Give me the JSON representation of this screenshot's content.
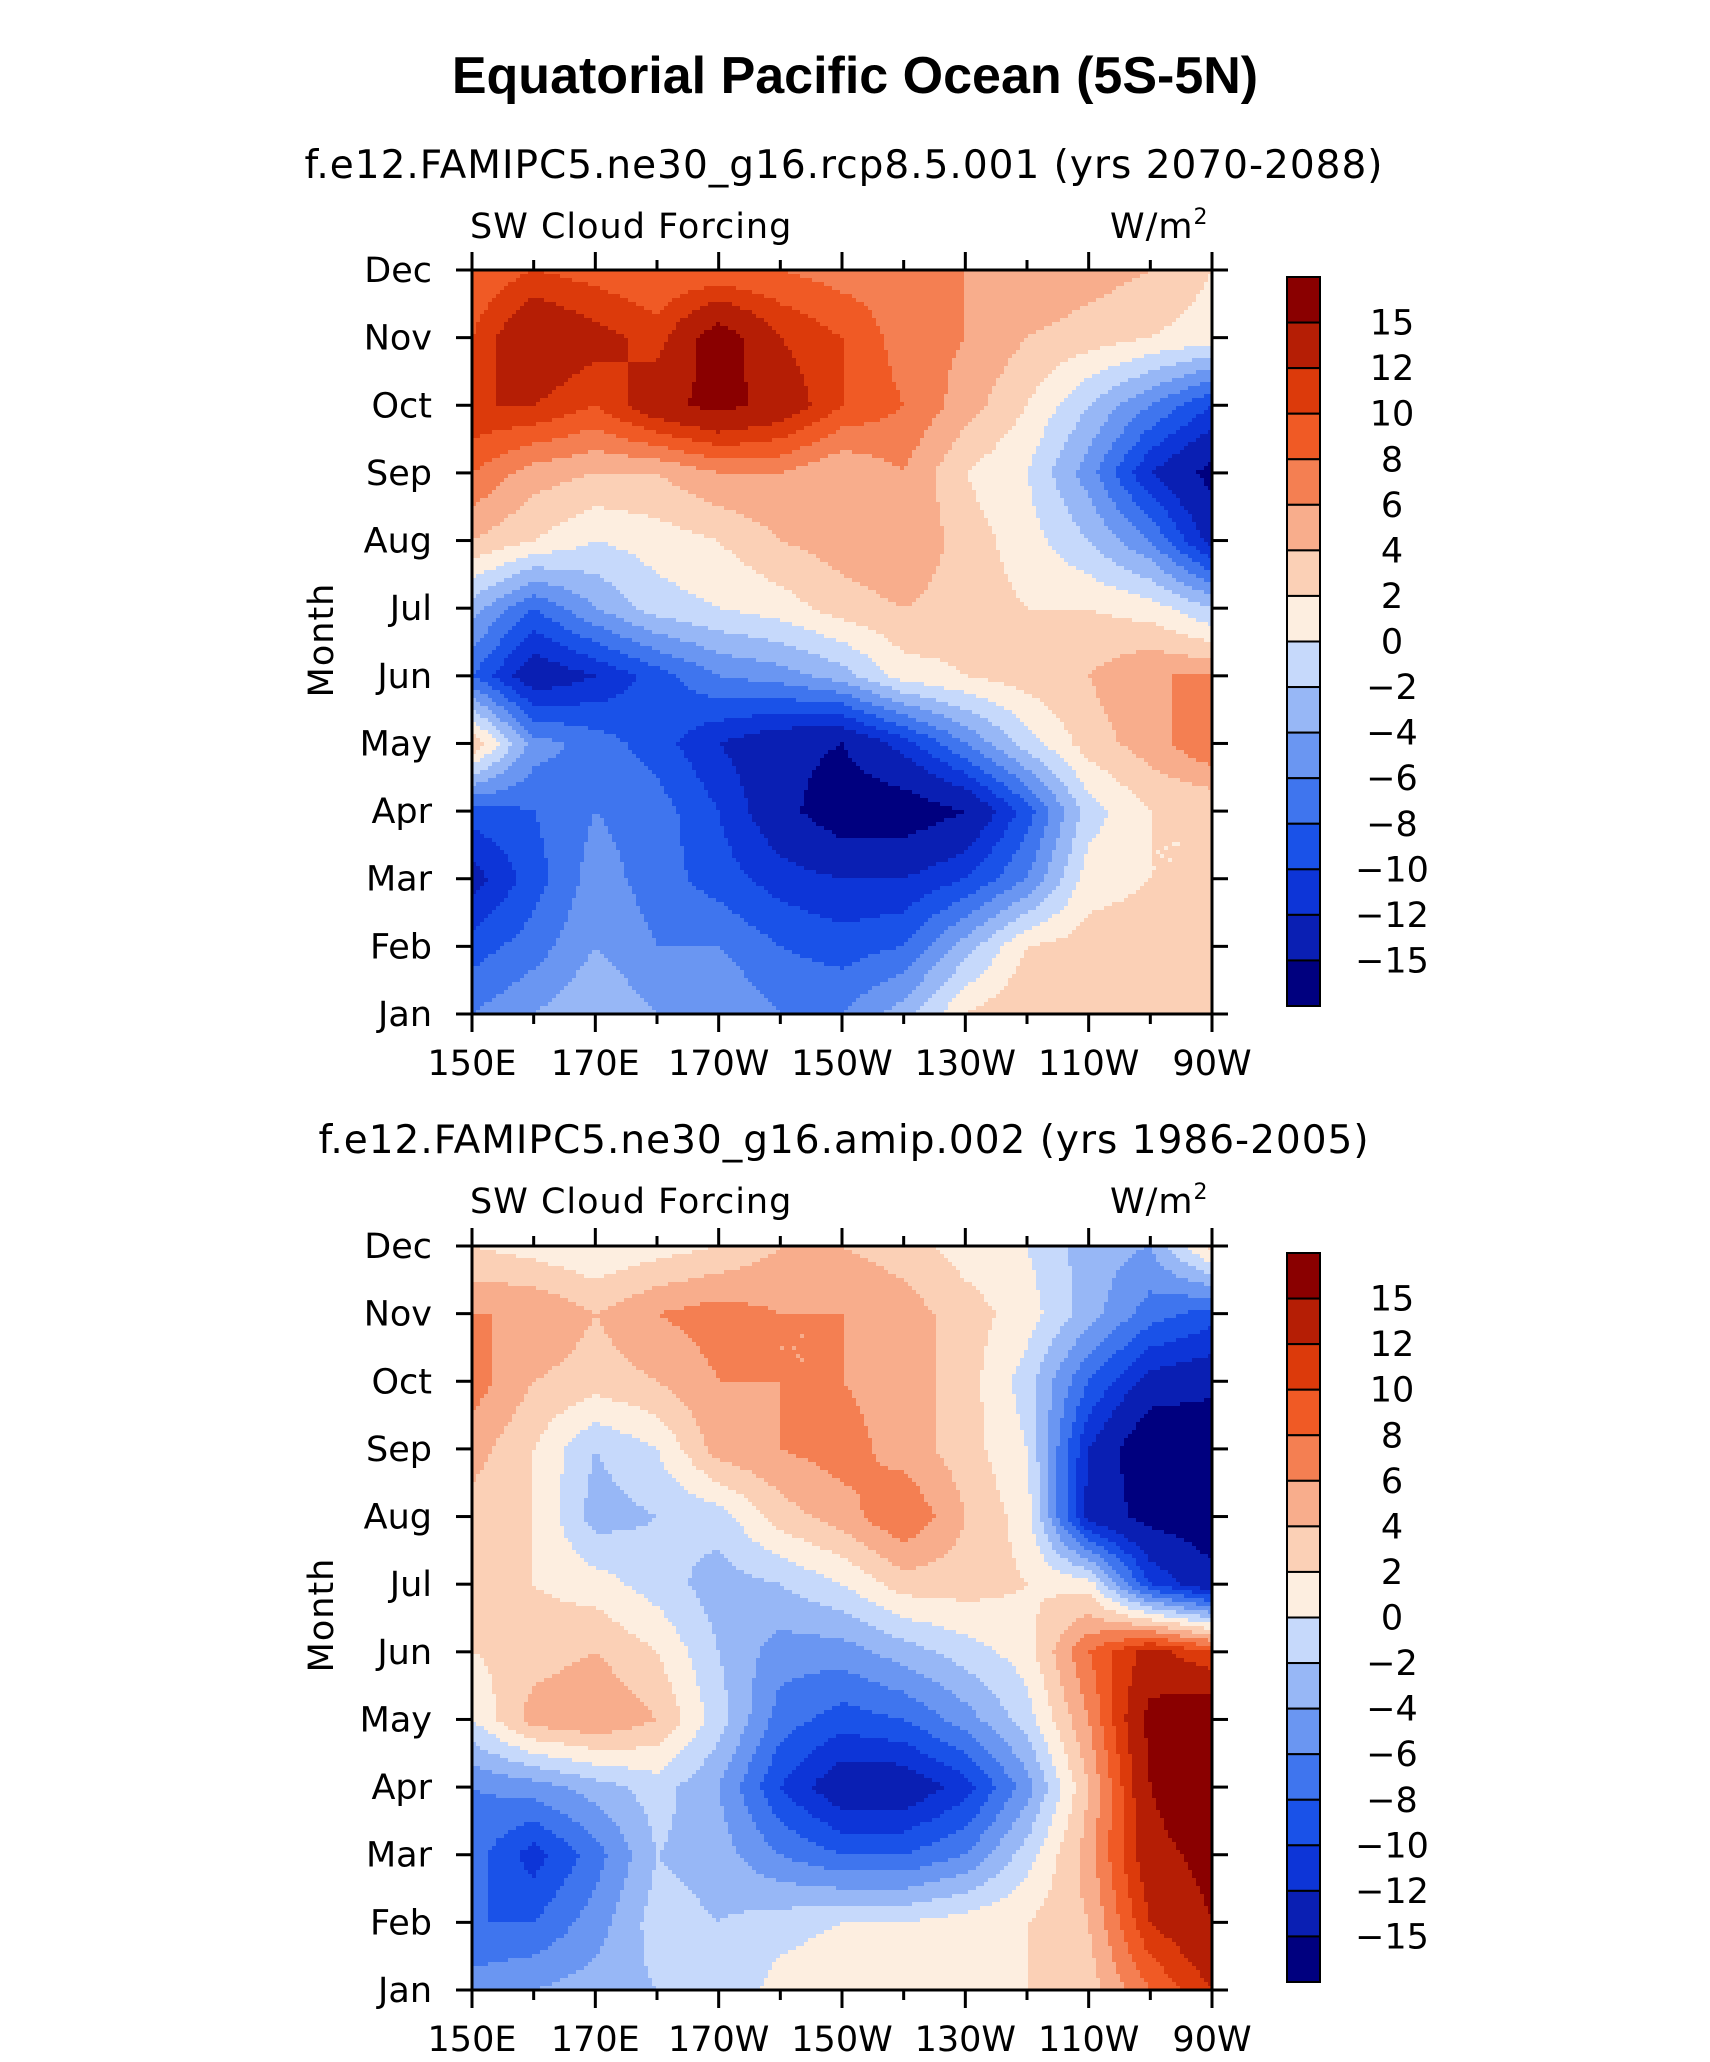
{
  "page_title": "Equatorial Pacific Ocean (5S-5N)",
  "chart_data": [
    {
      "type": "heatmap",
      "title": "f.e12.FAMIPC5.ne30_g16.rcp8.5.001 (yrs 2070-2088)",
      "field_label": "SW Cloud Forcing",
      "units_label": "W/m",
      "units_superscript": "2",
      "ylabel": "Month",
      "xlabel": "",
      "x_tick_labels": [
        "150E",
        "170E",
        "170W",
        "150W",
        "130W",
        "110W",
        "90W"
      ],
      "x": [
        150,
        160,
        170,
        180,
        190,
        200,
        210,
        220,
        230,
        240,
        250,
        260,
        270
      ],
      "y_tick_labels": [
        "Jan",
        "Feb",
        "Mar",
        "Apr",
        "May",
        "Jun",
        "Jul",
        "Aug",
        "Sep",
        "Oct",
        "Nov",
        "Dec"
      ],
      "colorbar_labels": [
        "15",
        "12",
        "10",
        "8",
        "6",
        "4",
        "2",
        "0",
        "−2",
        "−4",
        "−6",
        "−8",
        "−10",
        "−12",
        "−15"
      ],
      "z": [
        [
          -6,
          -4,
          -2,
          -4,
          -4,
          -6,
          -6,
          -3,
          2,
          4,
          4,
          4,
          2
        ],
        [
          -9,
          -7,
          -4,
          -6,
          -6,
          -8,
          -9,
          -8,
          -3,
          2,
          3,
          3,
          2
        ],
        [
          -13,
          -9,
          -5,
          -7,
          -9,
          -11,
          -12,
          -12,
          -10,
          -6,
          1,
          2,
          2
        ],
        [
          -9,
          -8,
          -6,
          -7,
          -10,
          -14,
          -17,
          -17,
          -15,
          -9,
          -1,
          2,
          2
        ],
        [
          4,
          -5,
          -7,
          -9,
          -12,
          -14,
          -15,
          -11,
          -6,
          -1,
          3,
          5,
          8
        ],
        [
          -8,
          -14,
          -12,
          -9,
          -6,
          -5,
          -3,
          1,
          2,
          3,
          4,
          6,
          6
        ],
        [
          -3,
          -8,
          -4,
          -1,
          0,
          1,
          3,
          4,
          3,
          2,
          2,
          1,
          -2
        ],
        [
          4,
          2,
          0,
          1,
          2,
          4,
          5,
          6,
          3,
          1,
          -2,
          -6,
          -13
        ],
        [
          8,
          5,
          4,
          4,
          6,
          6,
          4,
          6,
          2,
          0,
          -5,
          -12,
          -16
        ],
        [
          12,
          12,
          10,
          14,
          16,
          14,
          10,
          8,
          5,
          2,
          -2,
          -6,
          -10
        ],
        [
          10,
          15,
          13,
          11,
          17,
          12,
          10,
          7,
          6,
          4,
          3,
          2,
          1
        ],
        [
          8,
          10,
          9,
          8,
          8,
          8,
          7,
          7,
          6,
          6,
          5,
          4,
          2
        ]
      ]
    },
    {
      "type": "heatmap",
      "title": "f.e12.FAMIPC5.ne30_g16.amip.002 (yrs 1986-2005)",
      "field_label": "SW Cloud Forcing",
      "units_label": "W/m",
      "units_superscript": "2",
      "ylabel": "Month",
      "xlabel": "",
      "x_tick_labels": [
        "150E",
        "170E",
        "170W",
        "150W",
        "130W",
        "110W",
        "90W"
      ],
      "x": [
        150,
        160,
        170,
        180,
        190,
        200,
        210,
        220,
        230,
        240,
        250,
        260,
        270
      ],
      "y_tick_labels": [
        "Jan",
        "Feb",
        "Mar",
        "Apr",
        "May",
        "Jun",
        "Jul",
        "Aug",
        "Sep",
        "Oct",
        "Nov",
        "Dec"
      ],
      "colorbar_labels": [
        "15",
        "12",
        "10",
        "8",
        "6",
        "4",
        "2",
        "0",
        "−2",
        "−4",
        "−6",
        "−8",
        "−10",
        "−12",
        "−15"
      ],
      "z": [
        [
          -5,
          -4,
          -3,
          -2,
          -2,
          1,
          2,
          2,
          2,
          2,
          3,
          8,
          12
        ],
        [
          -8,
          -8,
          -5,
          -1,
          -2,
          -1,
          0,
          0,
          1,
          2,
          4,
          12,
          15
        ],
        [
          -7,
          -11,
          -7,
          -2,
          -3,
          -6,
          -8,
          -8,
          -6,
          -1,
          5,
          14,
          16
        ],
        [
          -6,
          -5,
          -3,
          -1,
          -4,
          -10,
          -14,
          -14,
          -11,
          -5,
          4,
          15,
          18
        ],
        [
          0,
          5,
          6,
          4,
          -1,
          -7,
          -9,
          -8,
          -5,
          -1,
          6,
          16,
          18
        ],
        [
          2,
          3,
          4,
          2,
          -2,
          -5,
          -5,
          -3,
          -1,
          1,
          8,
          13,
          10
        ],
        [
          2,
          2,
          1,
          -1,
          -3,
          -2,
          0,
          3,
          3,
          2,
          1,
          -10,
          -14
        ],
        [
          3,
          2,
          -3,
          -2,
          -1,
          3,
          5,
          8,
          4,
          1,
          -13,
          -16,
          -17
        ],
        [
          5,
          2,
          -2,
          0,
          5,
          6,
          7,
          5,
          3,
          0,
          -12,
          -18,
          -18
        ],
        [
          7,
          4,
          3,
          4,
          6,
          6,
          6,
          5,
          3,
          -1,
          -8,
          -13,
          -14
        ],
        [
          6,
          6,
          4,
          6,
          7,
          6,
          6,
          5,
          3,
          1,
          -3,
          -7,
          -9
        ],
        [
          2,
          1,
          0,
          1,
          2,
          4,
          4,
          3,
          1,
          0,
          -3,
          -4,
          3
        ]
      ]
    }
  ],
  "colors": {
    "levels": [
      -15,
      -12,
      -10,
      -8,
      -6,
      -4,
      -2,
      0,
      2,
      4,
      6,
      8,
      10,
      12,
      15
    ],
    "palette": [
      "#00007f",
      "#0a1fb3",
      "#0d35d7",
      "#1a52e8",
      "#3f75ee",
      "#6a96f2",
      "#97b7f6",
      "#c6d9fb",
      "#fdeee0",
      "#fbd0b6",
      "#f8ad8c",
      "#f47f52",
      "#f05a25",
      "#dc3a0b",
      "#b51e05",
      "#8a0000"
    ]
  }
}
